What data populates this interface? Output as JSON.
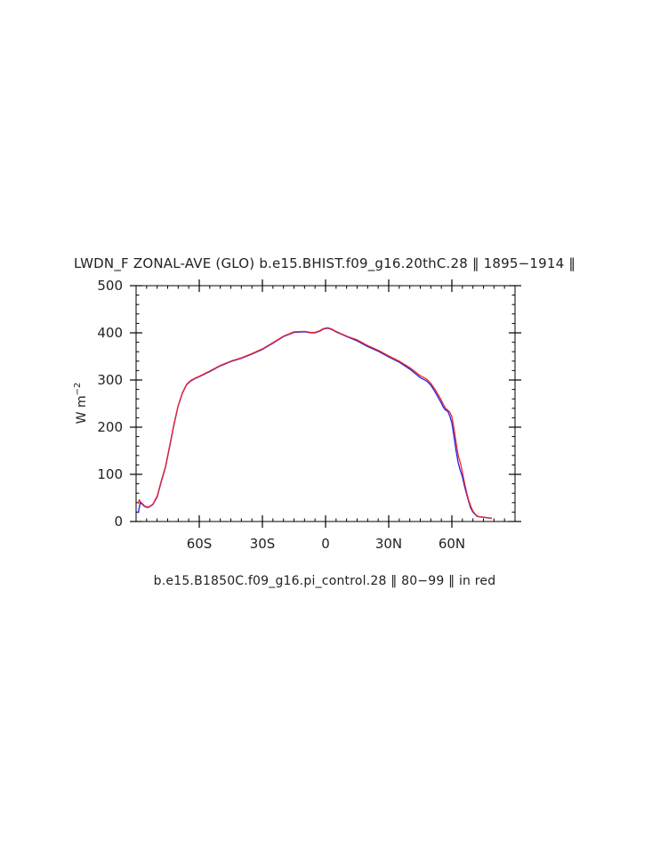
{
  "chart_data": {
    "type": "line",
    "title": "LWDN_F ZONAL-AVE (GLO) b.e15.BHIST.f09_g16.20thC.28 ‖ 1895−1914 ‖",
    "subtitle": "b.e15.B1850C.f09_g16.pi_control.28 ‖ 80−99 ‖ in red",
    "ylabel_base": "W m",
    "ylabel_exp": "−2",
    "xlim": [
      -90,
      90
    ],
    "ylim": [
      0,
      500
    ],
    "xticks": [
      {
        "value": -60,
        "label": "60S"
      },
      {
        "value": -30,
        "label": "30S"
      },
      {
        "value": 0,
        "label": "0"
      },
      {
        "value": 30,
        "label": "30N"
      },
      {
        "value": 60,
        "label": "60N"
      }
    ],
    "yticks": [
      {
        "value": 0,
        "label": "0"
      },
      {
        "value": 100,
        "label": "100"
      },
      {
        "value": 200,
        "label": "200"
      },
      {
        "value": 300,
        "label": "300"
      },
      {
        "value": 400,
        "label": "400"
      },
      {
        "value": 500,
        "label": "500"
      }
    ],
    "series": [
      {
        "color": "#2222ee",
        "points": [
          [
            -89,
            18
          ],
          [
            -88.5,
            30
          ],
          [
            -88,
            40
          ],
          [
            -87,
            36
          ],
          [
            -86,
            32
          ],
          [
            -85,
            30
          ],
          [
            -84,
            30
          ],
          [
            -82,
            36
          ],
          [
            -80,
            52
          ],
          [
            -78,
            85
          ],
          [
            -76,
            115
          ],
          [
            -74,
            160
          ],
          [
            -72,
            205
          ],
          [
            -70,
            245
          ],
          [
            -68,
            272
          ],
          [
            -66,
            290
          ],
          [
            -64,
            298
          ],
          [
            -62,
            303
          ],
          [
            -60,
            307
          ],
          [
            -55,
            318
          ],
          [
            -50,
            330
          ],
          [
            -45,
            339
          ],
          [
            -40,
            346
          ],
          [
            -35,
            355
          ],
          [
            -30,
            365
          ],
          [
            -25,
            378
          ],
          [
            -20,
            392
          ],
          [
            -15,
            401
          ],
          [
            -10,
            402
          ],
          [
            -7,
            400
          ],
          [
            -5,
            400
          ],
          [
            -3,
            403
          ],
          [
            -1,
            408
          ],
          [
            1,
            410
          ],
          [
            3,
            407
          ],
          [
            5,
            402
          ],
          [
            10,
            392
          ],
          [
            15,
            383
          ],
          [
            20,
            371
          ],
          [
            25,
            361
          ],
          [
            30,
            349
          ],
          [
            35,
            338
          ],
          [
            40,
            323
          ],
          [
            45,
            305
          ],
          [
            48,
            298
          ],
          [
            50,
            289
          ],
          [
            52,
            275
          ],
          [
            54,
            259
          ],
          [
            55,
            251
          ],
          [
            56,
            242
          ],
          [
            57,
            236
          ],
          [
            58,
            234
          ],
          [
            59,
            224
          ],
          [
            60,
            209
          ],
          [
            61,
            180
          ],
          [
            62,
            150
          ],
          [
            63,
            125
          ],
          [
            64,
            108
          ],
          [
            65,
            95
          ],
          [
            66,
            75
          ],
          [
            67,
            58
          ],
          [
            68,
            42
          ],
          [
            69,
            28
          ],
          [
            70,
            20
          ],
          [
            71,
            15
          ],
          [
            72,
            11
          ],
          [
            73,
            10
          ],
          [
            75,
            9
          ],
          [
            77,
            8
          ],
          [
            79,
            7
          ]
        ]
      },
      {
        "color": "#ee2222",
        "points": [
          [
            -89,
            38
          ],
          [
            -88.5,
            46
          ],
          [
            -88,
            42
          ],
          [
            -87,
            38
          ],
          [
            -86,
            33
          ],
          [
            -85,
            31
          ],
          [
            -84,
            31
          ],
          [
            -82,
            37
          ],
          [
            -80,
            54
          ],
          [
            -78,
            87
          ],
          [
            -76,
            117
          ],
          [
            -74,
            162
          ],
          [
            -72,
            207
          ],
          [
            -70,
            246
          ],
          [
            -68,
            273
          ],
          [
            -66,
            291
          ],
          [
            -64,
            299
          ],
          [
            -62,
            304
          ],
          [
            -60,
            308
          ],
          [
            -55,
            319
          ],
          [
            -50,
            331
          ],
          [
            -45,
            340
          ],
          [
            -40,
            347
          ],
          [
            -35,
            356
          ],
          [
            -30,
            366
          ],
          [
            -25,
            379
          ],
          [
            -20,
            393
          ],
          [
            -15,
            402
          ],
          [
            -10,
            403
          ],
          [
            -7,
            401
          ],
          [
            -5,
            401
          ],
          [
            -3,
            404
          ],
          [
            -1,
            409
          ],
          [
            1,
            411
          ],
          [
            3,
            408
          ],
          [
            5,
            403
          ],
          [
            10,
            393
          ],
          [
            15,
            385
          ],
          [
            20,
            373
          ],
          [
            25,
            363
          ],
          [
            30,
            351
          ],
          [
            35,
            340
          ],
          [
            40,
            326
          ],
          [
            45,
            309
          ],
          [
            48,
            302
          ],
          [
            50,
            293
          ],
          [
            52,
            280
          ],
          [
            54,
            265
          ],
          [
            55,
            257
          ],
          [
            56,
            248
          ],
          [
            57,
            240
          ],
          [
            58,
            236
          ],
          [
            59,
            232
          ],
          [
            60,
            222
          ],
          [
            61,
            197
          ],
          [
            62,
            168
          ],
          [
            63,
            140
          ],
          [
            64,
            125
          ],
          [
            65,
            105
          ],
          [
            66,
            82
          ],
          [
            67,
            62
          ],
          [
            68,
            45
          ],
          [
            69,
            32
          ],
          [
            70,
            22
          ],
          [
            71,
            16
          ],
          [
            72,
            12
          ],
          [
            73,
            10
          ],
          [
            75,
            9
          ],
          [
            77,
            8
          ],
          [
            79,
            7
          ]
        ]
      }
    ]
  }
}
